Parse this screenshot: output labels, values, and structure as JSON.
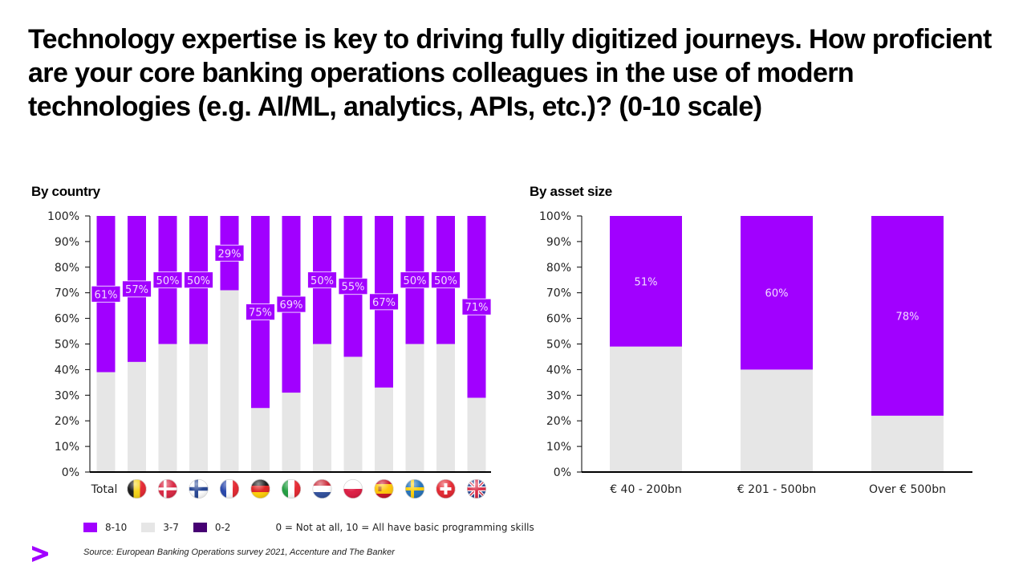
{
  "title": "Technology expertise is key to driving fully digitized journeys. How proficient are your core banking operations colleagues in the use of modern technologies (e.g. AI/ML, analytics, APIs, etc.)? (0-10 scale)",
  "colors": {
    "high": "#a100ff",
    "mid": "#e6e6e6",
    "low": "#460073",
    "axis": "#000000",
    "label_text": "#f2dcff"
  },
  "chart_data": [
    {
      "type": "bar",
      "stacked": true,
      "title": "By country",
      "xlabel": "",
      "ylabel": "",
      "ylim": [
        0,
        100
      ],
      "yticks": [
        "0%",
        "10%",
        "20%",
        "30%",
        "40%",
        "50%",
        "60%",
        "70%",
        "80%",
        "90%",
        "100%"
      ],
      "categories": [
        "Total",
        "Belgium",
        "Denmark",
        "Finland",
        "France",
        "Germany",
        "Italy",
        "Netherlands",
        "Poland",
        "Spain",
        "Sweden",
        "Switzerland",
        "United Kingdom"
      ],
      "category_display": [
        "Total",
        "flag-be",
        "flag-dk",
        "flag-fi",
        "flag-fr",
        "flag-de",
        "flag-it",
        "flag-nl",
        "flag-pl",
        "flag-es",
        "flag-se",
        "flag-ch",
        "flag-gb"
      ],
      "series": [
        {
          "name": "3-7",
          "values": [
            39,
            43,
            50,
            50,
            71,
            25,
            31,
            50,
            45,
            33,
            50,
            50,
            29
          ]
        },
        {
          "name": "8-10",
          "values": [
            61,
            57,
            50,
            50,
            29,
            75,
            69,
            50,
            55,
            67,
            50,
            50,
            71
          ]
        },
        {
          "name": "0-2",
          "values": [
            0,
            0,
            0,
            0,
            0,
            0,
            0,
            0,
            0,
            0,
            0,
            0,
            0
          ]
        }
      ],
      "data_labels": [
        "61%",
        "57%",
        "50%",
        "50%",
        "29%",
        "75%",
        "69%",
        "50%",
        "55%",
        "67%",
        "50%",
        "50%",
        "71%"
      ]
    },
    {
      "type": "bar",
      "stacked": true,
      "title": "By asset size",
      "xlabel": "",
      "ylabel": "",
      "ylim": [
        0,
        100
      ],
      "yticks": [
        "0%",
        "10%",
        "20%",
        "30%",
        "40%",
        "50%",
        "60%",
        "70%",
        "80%",
        "90%",
        "100%"
      ],
      "categories": [
        "€ 40 - 200bn",
        "€ 201 - 500bn",
        "Over € 500bn"
      ],
      "series": [
        {
          "name": "3-7",
          "values": [
            49,
            40,
            22
          ]
        },
        {
          "name": "8-10",
          "values": [
            51,
            60,
            78
          ]
        },
        {
          "name": "0-2",
          "values": [
            0,
            0,
            0
          ]
        }
      ],
      "data_labels": [
        "51%",
        "60%",
        "78%"
      ]
    }
  ],
  "legend": {
    "items": [
      {
        "label": "8-10",
        "color": "#a100ff"
      },
      {
        "label": "3-7",
        "color": "#e6e6e6"
      },
      {
        "label": "0-2",
        "color": "#460073"
      }
    ],
    "note": "0 = Not at all, 10 = All have basic programming  skills",
    "placement": "bottom-left"
  },
  "source": "Source: European Banking Operations survey 2021, Accenture and The Banker",
  "logo": "accenture-greater-than-icon"
}
